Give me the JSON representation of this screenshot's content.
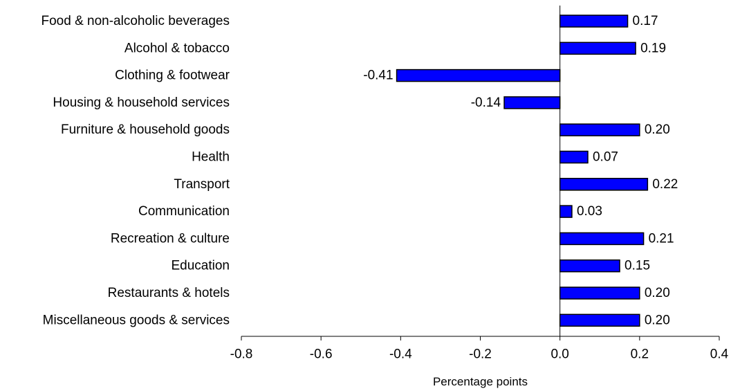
{
  "chart_data": {
    "type": "bar",
    "orientation": "horizontal",
    "categories": [
      "Food & non-alcoholic beverages",
      "Alcohol & tobacco",
      "Clothing & footwear",
      "Housing & household services",
      "Furniture & household goods",
      "Health",
      "Transport",
      "Communication",
      "Recreation & culture",
      "Education",
      "Restaurants & hotels",
      "Miscellaneous goods & services"
    ],
    "values": [
      0.17,
      0.19,
      -0.41,
      -0.14,
      0.2,
      0.07,
      0.22,
      0.03,
      0.21,
      0.15,
      0.2,
      0.2
    ],
    "data_labels": [
      "0.17",
      "0.19",
      "-0.41",
      "-0.14",
      "0.20",
      "0.07",
      "0.22",
      "0.03",
      "0.21",
      "0.15",
      "0.20",
      "0.20"
    ],
    "xlabel": "Percentage points",
    "xlim": [
      -0.8,
      0.4
    ],
    "xticks": [
      -0.8,
      -0.6,
      -0.4,
      -0.2,
      0.0,
      0.2,
      0.4
    ],
    "xtick_labels": [
      "-0.8",
      "-0.6",
      "-0.4",
      "-0.2",
      "0.0",
      "0.2",
      "0.4"
    ],
    "grid": false,
    "legend": "none",
    "bar_color": "#0000FF",
    "bar_outline_color": "#000000"
  }
}
